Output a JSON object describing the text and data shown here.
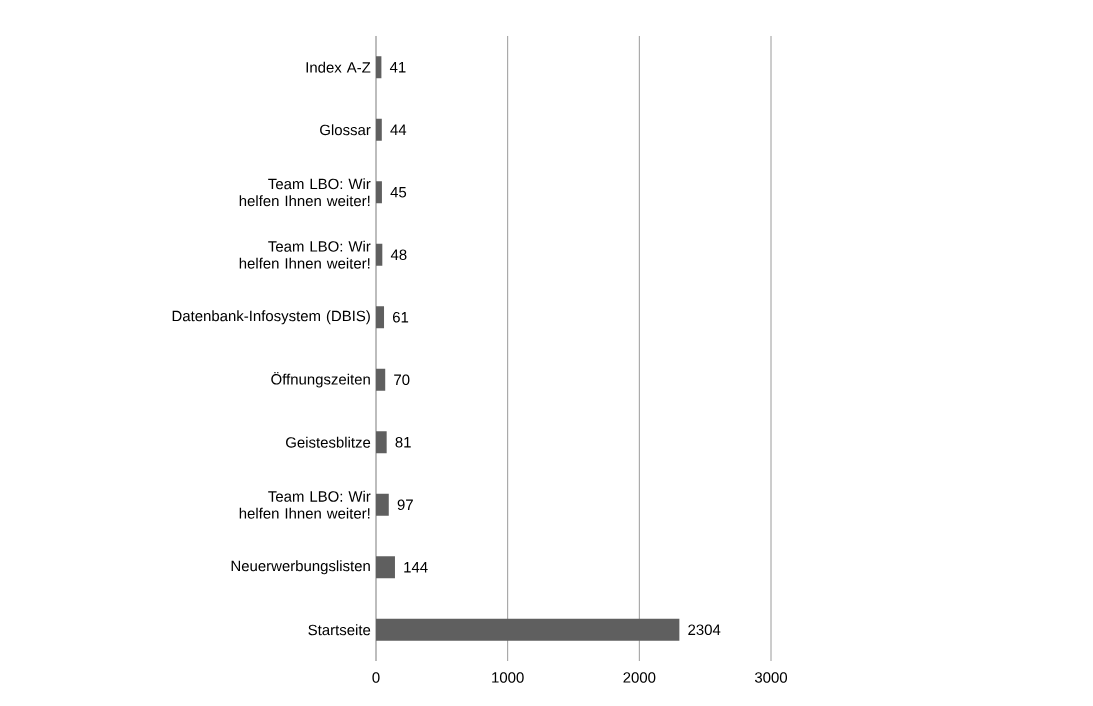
{
  "chart_data": {
    "type": "bar",
    "orientation": "horizontal",
    "categories": [
      "Index A-Z",
      "Glossar",
      "Team LBO: Wir helfen Ihnen weiter!",
      "Team LBO: Wir helfen Ihnen weiter!",
      "Datenbank-Infosystem (DBIS)",
      "Öffnungszeiten",
      "Geistesblitze",
      "Team LBO: Wir helfen Ihnen weiter!",
      "Neuerwerbungslisten",
      "Startseite"
    ],
    "values": [
      41,
      44,
      45,
      48,
      61,
      70,
      81,
      97,
      144,
      2304
    ],
    "color": "#5f5f5f",
    "xlim": [
      0,
      3000
    ],
    "xticks": [
      0,
      1000,
      2000,
      3000
    ],
    "grid": "x",
    "data_labels": true
  }
}
